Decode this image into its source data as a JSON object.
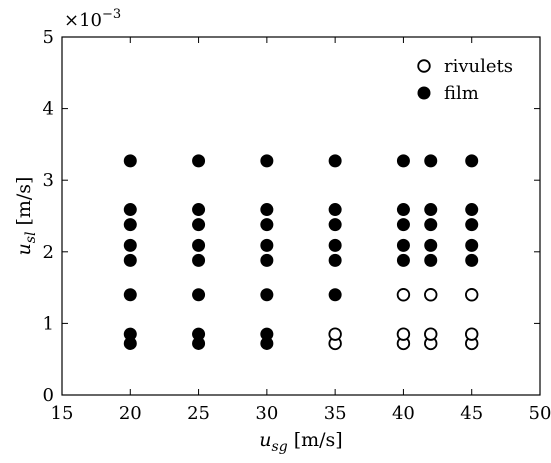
{
  "chart_data": {
    "type": "scatter",
    "xlabel": {
      "base": "u",
      "sub": "sg",
      "unit": "[m/s]"
    },
    "ylabel": {
      "base": "u",
      "sub": "sl",
      "unit": "[m/s]"
    },
    "xlim": [
      15,
      50
    ],
    "ylim": [
      0,
      5
    ],
    "xticks": [
      "15",
      "20",
      "25",
      "30",
      "35",
      "40",
      "45",
      "50"
    ],
    "yticks": [
      "0",
      "1",
      "2",
      "3",
      "4",
      "5"
    ],
    "y_multiplier": {
      "base": "×10",
      "exponent": "−3"
    },
    "grid": false,
    "legend_position": "top-right",
    "series": [
      {
        "name": "rivulets",
        "marker": "open-circle",
        "color": "#000000",
        "points": [
          [
            35,
            0.72
          ],
          [
            35,
            0.85
          ],
          [
            40,
            0.72
          ],
          [
            40,
            0.85
          ],
          [
            40,
            1.4
          ],
          [
            42,
            0.72
          ],
          [
            42,
            0.85
          ],
          [
            42,
            1.4
          ],
          [
            45,
            0.72
          ],
          [
            45,
            0.85
          ],
          [
            45,
            1.4
          ]
        ]
      },
      {
        "name": "film",
        "marker": "filled-circle",
        "color": "#000000",
        "points": [
          [
            20,
            0.72
          ],
          [
            20,
            0.85
          ],
          [
            20,
            1.4
          ],
          [
            20,
            1.88
          ],
          [
            20,
            2.09
          ],
          [
            20,
            2.38
          ],
          [
            20,
            2.59
          ],
          [
            20,
            3.27
          ],
          [
            25,
            0.72
          ],
          [
            25,
            0.85
          ],
          [
            25,
            1.4
          ],
          [
            25,
            1.88
          ],
          [
            25,
            2.09
          ],
          [
            25,
            2.38
          ],
          [
            25,
            2.59
          ],
          [
            25,
            3.27
          ],
          [
            30,
            0.72
          ],
          [
            30,
            0.85
          ],
          [
            30,
            1.4
          ],
          [
            30,
            1.88
          ],
          [
            30,
            2.09
          ],
          [
            30,
            2.38
          ],
          [
            30,
            2.59
          ],
          [
            30,
            3.27
          ],
          [
            35,
            1.4
          ],
          [
            35,
            1.88
          ],
          [
            35,
            2.09
          ],
          [
            35,
            2.38
          ],
          [
            35,
            2.59
          ],
          [
            35,
            3.27
          ],
          [
            40,
            1.88
          ],
          [
            40,
            2.09
          ],
          [
            40,
            2.38
          ],
          [
            40,
            2.59
          ],
          [
            40,
            3.27
          ],
          [
            42,
            1.88
          ],
          [
            42,
            2.09
          ],
          [
            42,
            2.38
          ],
          [
            42,
            2.59
          ],
          [
            42,
            3.27
          ],
          [
            45,
            1.88
          ],
          [
            45,
            2.09
          ],
          [
            45,
            2.38
          ],
          [
            45,
            2.59
          ],
          [
            45,
            3.27
          ]
        ]
      }
    ]
  }
}
